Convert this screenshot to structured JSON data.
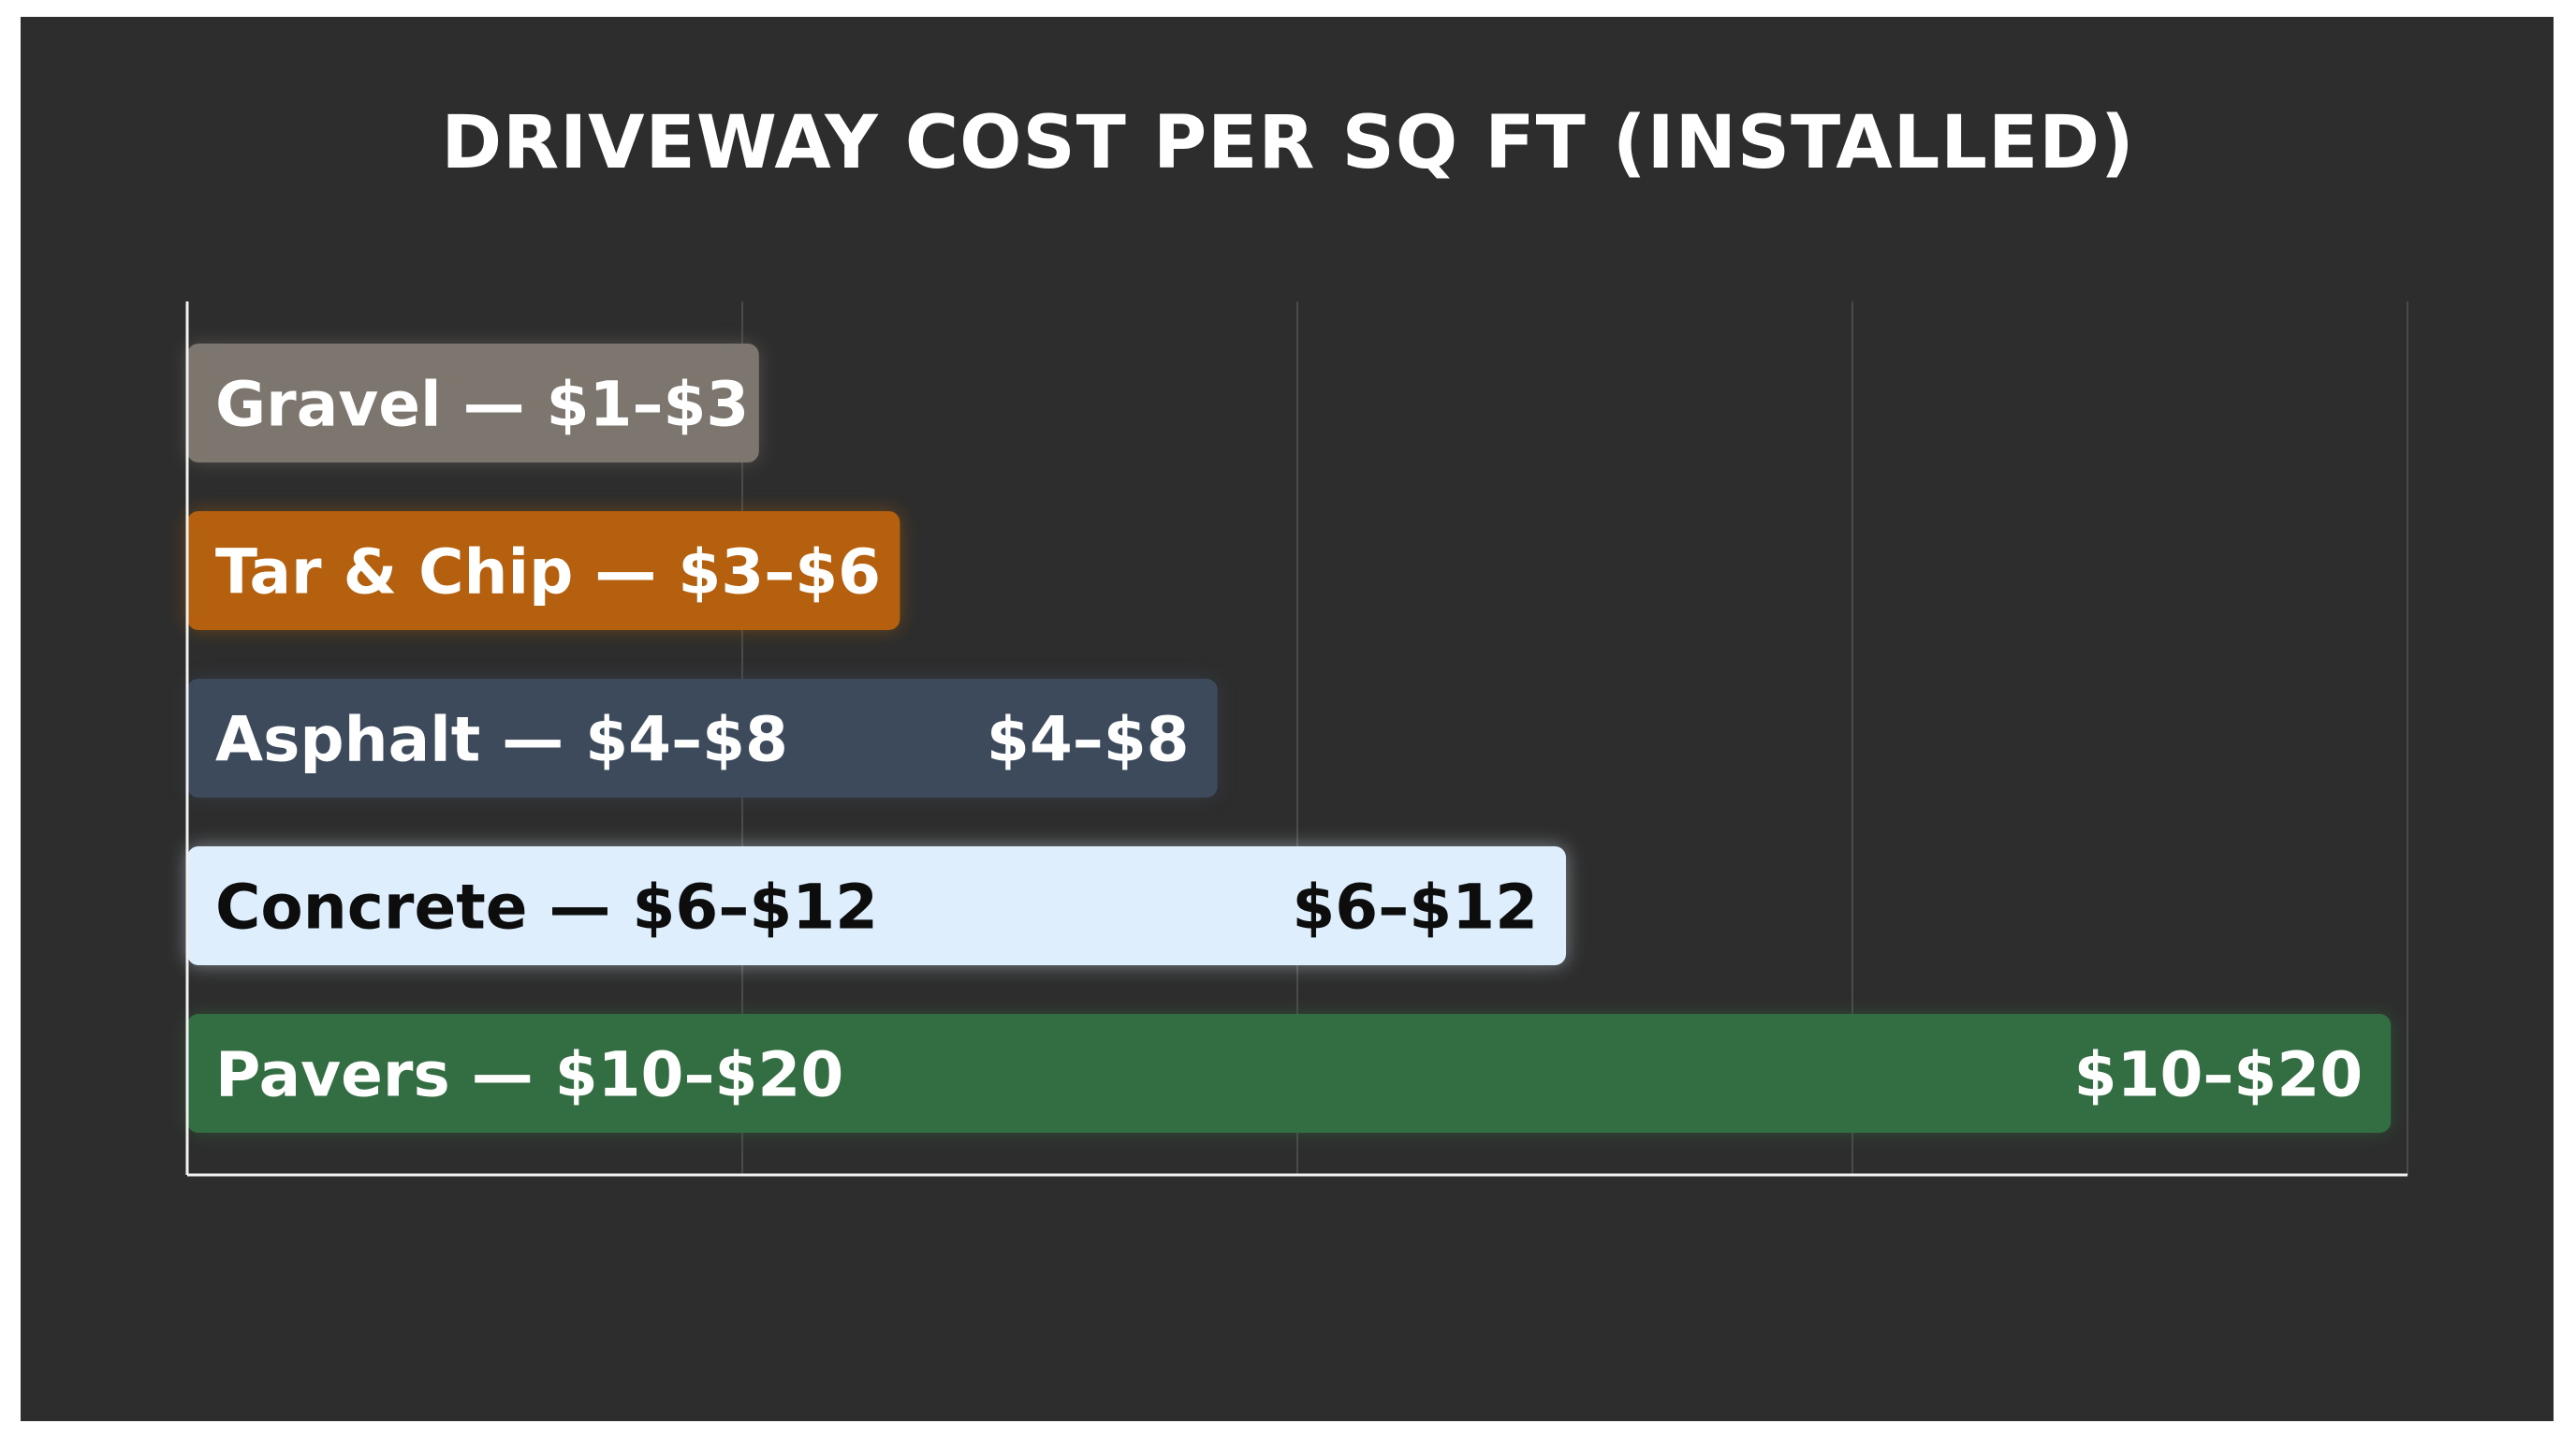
{
  "chart_data": {
    "type": "bar",
    "orientation": "horizontal",
    "title": "DRIVEWAY COST PER SQ FT (INSTALLED)",
    "xlabel": "",
    "ylabel": "",
    "xlim": [
      0,
      20
    ],
    "grid": true,
    "legend": "none",
    "bars": [
      {
        "name": "Gravel",
        "label": "Gravel — $1–$3",
        "end_label": "",
        "min": 1,
        "max": 3,
        "value": 5.15,
        "color": "#7d766e",
        "text_color": "#ffffff"
      },
      {
        "name": "Tar & Chip",
        "label": "Tar & Chip — $3–$6",
        "end_label": "",
        "min": 3,
        "max": 6,
        "value": 6.42,
        "color": "#b4600f",
        "text_color": "#ffffff"
      },
      {
        "name": "Asphalt",
        "label": "Asphalt — $4–$8",
        "end_label": "$4–$8",
        "min": 4,
        "max": 8,
        "value": 9.28,
        "color": "#3c4a5c",
        "text_color": "#ffffff"
      },
      {
        "name": "Concrete",
        "label": "Concrete — $6–$12",
        "end_label": "$6–$12",
        "min": 6,
        "max": 12,
        "value": 12.42,
        "color": "#deeefc",
        "text_color": "#0d0d0d"
      },
      {
        "name": "Pavers",
        "label": "Pavers — $10–$20",
        "end_label": "$10–$20",
        "min": 10,
        "max": 20,
        "value": 19.85,
        "color": "#336e43",
        "text_color": "#ffffff"
      }
    ]
  }
}
